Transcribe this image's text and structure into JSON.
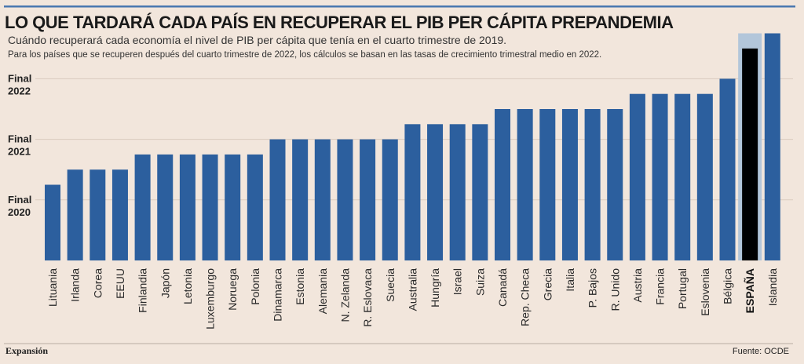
{
  "title": "LO QUE TARDARÁ CADA PAÍS EN RECUPERAR EL PIB PER CÁPITA PREPANDEMIA",
  "subtitle": "Cuándo recuperará cada economía el nivel de PIB per cápita que tenía en el cuarto trimestre de 2019.",
  "note": "Para los países que se recuperen después del cuarto trimestre de 2022, los cálculos se basan en las tasas de crecimiento trimestral medio en 2022.",
  "footer": {
    "brand": "Expansión",
    "source": "Fuente: OCDE"
  },
  "colors": {
    "bar": "#2c5f9e",
    "highlight_bar": "#000000",
    "highlight_bg": "#b3c6da",
    "top_rule": "#4a78b0"
  },
  "chart_data": {
    "type": "bar",
    "title": "LO QUE TARDARÁ CADA PAÍS EN RECUPERAR EL PIB PER CÁPITA PREPANDEMIA",
    "baseline": "2019-Q4",
    "ylim": [
      "2019-Q4",
      "2023-Q3"
    ],
    "yticks": [
      {
        "value": "2020-Q4",
        "label": [
          "Final",
          "2020"
        ]
      },
      {
        "value": "2021-Q4",
        "label": [
          "Final",
          "2021"
        ]
      },
      {
        "value": "2022-Q4",
        "label": [
          "Final",
          "2022"
        ]
      }
    ],
    "grid": true,
    "highlight": "ESPAÑA",
    "categories": [
      "Lituania",
      "Irlanda",
      "Corea",
      "EEUU",
      "Finlandia",
      "Japón",
      "Letonia",
      "Luxemburgo",
      "Noruega",
      "Polonia",
      "Dinamarca",
      "Estonia",
      "Alemania",
      "N. Zelanda",
      "R. Eslovaca",
      "Suecia",
      "Australia",
      "Hungría",
      "Israel",
      "Suiza",
      "Canadá",
      "Rep. Checa",
      "Grecia",
      "Italia",
      "P. Bajos",
      "R. Unido",
      "Austria",
      "Francia",
      "Portugal",
      "Eslovenia",
      "Bélgica",
      "ESPAÑA",
      "Islandia"
    ],
    "values": [
      "2021-Q1",
      "2021-Q2",
      "2021-Q2",
      "2021-Q2",
      "2021-Q3",
      "2021-Q3",
      "2021-Q3",
      "2021-Q3",
      "2021-Q3",
      "2021-Q3",
      "2021-Q4",
      "2021-Q4",
      "2021-Q4",
      "2021-Q4",
      "2021-Q4",
      "2021-Q4",
      "2022-Q1",
      "2022-Q1",
      "2022-Q1",
      "2022-Q1",
      "2022-Q2",
      "2022-Q2",
      "2022-Q2",
      "2022-Q2",
      "2022-Q2",
      "2022-Q2",
      "2022-Q3",
      "2022-Q3",
      "2022-Q3",
      "2022-Q3",
      "2022-Q4",
      "2023-Q2",
      "2023-Q3"
    ]
  }
}
